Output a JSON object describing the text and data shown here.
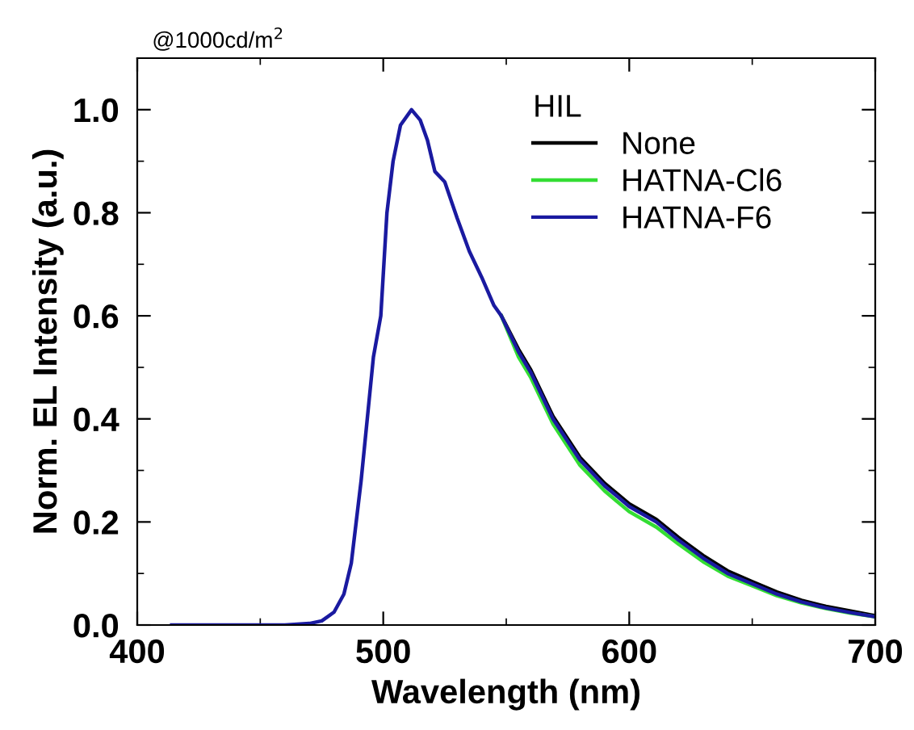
{
  "chart_data": {
    "type": "line",
    "xlabel": "Wavelength (nm)",
    "ylabel": "Norm. EL Intensity (a.u.)",
    "legend_title": "HIL",
    "legend": "top right",
    "annotations": [
      "@1000cd/m$^{2}$"
    ],
    "xlim": [
      400,
      700
    ],
    "ylim": [
      0,
      1.1
    ],
    "xticks": [
      400,
      500,
      600,
      700
    ],
    "yticks": [
      {
        "value": 0,
        "label": "0.0"
      },
      0.2,
      0.4,
      0.6,
      0.8,
      {
        "value": 1,
        "label": "1.0"
      }
    ],
    "grid": false,
    "marker": "none",
    "line_style": "solid",
    "x": [
      414,
      440,
      460,
      470,
      475,
      480,
      484,
      487,
      489,
      491,
      493.5,
      496,
      499,
      501.5,
      504,
      507,
      511.5,
      515,
      518,
      521,
      525,
      530,
      535,
      540,
      545,
      548,
      555,
      560,
      569,
      580,
      590,
      600,
      611,
      620,
      630,
      640,
      650,
      660,
      670,
      680,
      690,
      700
    ],
    "series": [
      {
        "name": "None",
        "color": "#000000",
        "values": [
          null,
          null,
          null,
          null,
          null,
          null,
          null,
          null,
          null,
          null,
          null,
          null,
          null,
          null,
          null,
          null,
          null,
          null,
          null,
          null,
          null,
          null,
          null,
          null,
          null,
          0.6,
          0.535,
          0.495,
          0.405,
          0.325,
          0.275,
          0.235,
          0.205,
          0.17,
          0.135,
          0.105,
          0.084,
          0.064,
          0.048,
          0.036,
          0.027,
          0.018
        ]
      },
      {
        "name": "HATNA-Cl6",
        "color": "#33dd33",
        "values": [
          null,
          null,
          null,
          null,
          null,
          null,
          null,
          null,
          null,
          null,
          null,
          null,
          null,
          null,
          null,
          null,
          null,
          null,
          null,
          null,
          null,
          null,
          null,
          null,
          null,
          0.6,
          0.52,
          0.48,
          0.39,
          0.31,
          0.26,
          0.22,
          0.19,
          0.157,
          0.123,
          0.095,
          0.076,
          0.057,
          0.043,
          0.032,
          0.023,
          0.016
        ]
      },
      {
        "name": "HATNA-F6",
        "color": "#1a1aa0",
        "values": [
          0,
          0,
          0,
          0.003,
          0.008,
          0.025,
          0.06,
          0.12,
          0.2,
          0.28,
          0.4,
          0.52,
          0.6,
          0.8,
          0.9,
          0.97,
          1.0,
          0.98,
          0.94,
          0.88,
          0.86,
          0.79,
          0.725,
          0.675,
          0.62,
          0.6,
          0.53,
          0.49,
          0.4,
          0.32,
          0.27,
          0.23,
          0.2,
          0.165,
          0.13,
          0.1,
          0.08,
          0.06,
          0.045,
          0.033,
          0.024,
          0.016
        ]
      }
    ]
  }
}
